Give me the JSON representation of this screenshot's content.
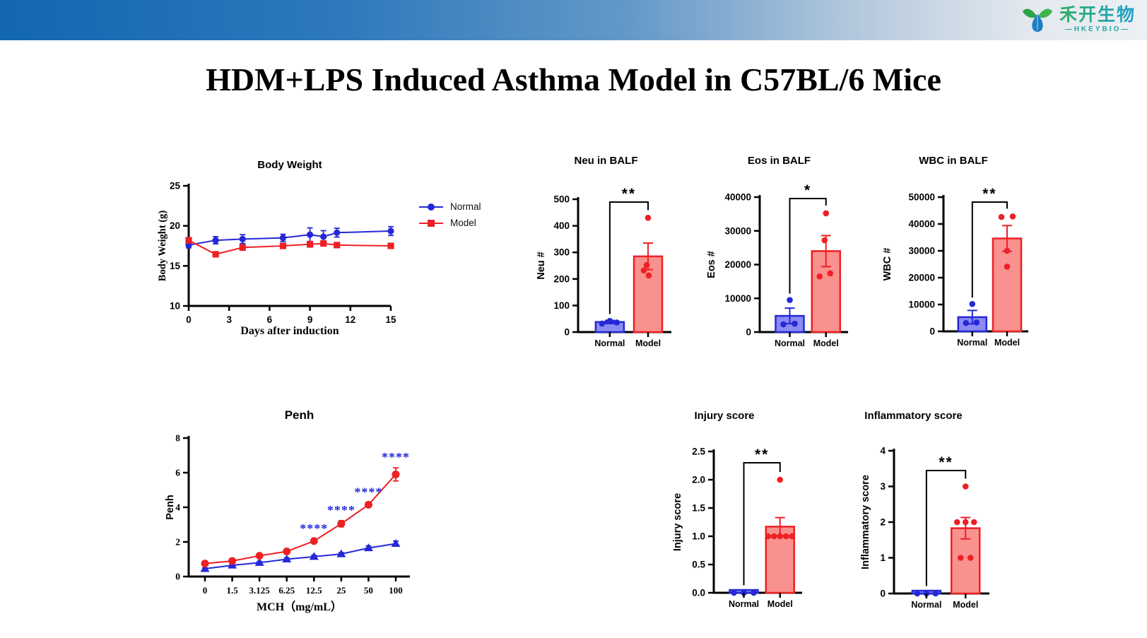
{
  "slide_title": "HDM+LPS Induced Asthma Model in C57BL/6 Mice",
  "logo": {
    "name_cn": "禾开生物",
    "name_en": "HKEYBIO"
  },
  "legend": {
    "items": [
      {
        "label": "Normal",
        "marker": "circle",
        "color": "#2428d6"
      },
      {
        "label": "Model",
        "marker": "square",
        "color": "#ee2025"
      }
    ]
  },
  "colors": {
    "normal_line": "#2428d6",
    "model_line": "#ee2025",
    "normal_fill": "#8a8af2",
    "model_fill": "#f9918e",
    "axis": "#000000",
    "annotation": "#2428d6"
  },
  "chart_data": [
    {
      "id": "body-weight",
      "type": "line",
      "title": "Body Weight",
      "xlabel": "Days after induction",
      "ylabel": "Body Weight (g)",
      "x": [
        0,
        2,
        4,
        7,
        9,
        10,
        11,
        15
      ],
      "xlim": [
        0,
        15
      ],
      "xticks": [
        0,
        3,
        6,
        9,
        12,
        15
      ],
      "ylim": [
        10,
        25
      ],
      "yticks": [
        10,
        15,
        20,
        25
      ],
      "ytick_labels": [
        "10",
        "15",
        "20",
        "25"
      ],
      "series": [
        {
          "name": "Normal",
          "color": "#2428d6",
          "marker": "circle",
          "values": [
            17.6,
            18.2,
            18.35,
            18.5,
            18.9,
            18.65,
            19.15,
            19.35
          ],
          "err": [
            0.35,
            0.45,
            0.55,
            0.45,
            0.85,
            0.75,
            0.55,
            0.55
          ]
        },
        {
          "name": "Model",
          "color": "#ee2025",
          "marker": "square",
          "values": [
            18.2,
            16.45,
            17.3,
            17.5,
            17.7,
            17.8,
            17.6,
            17.5
          ],
          "err": [
            0.25,
            0.15,
            0.35,
            0.2,
            0.35,
            0.15,
            0.2,
            0.15
          ]
        }
      ]
    },
    {
      "id": "penh",
      "type": "line",
      "title": "Penh",
      "xlabel": "MCH（mg/mL）",
      "ylabel": "Penh",
      "xcats": [
        "0",
        "1.5",
        "3.125",
        "6.25",
        "12.5",
        "25",
        "50",
        "100"
      ],
      "ylim": [
        0,
        8
      ],
      "yticks": [
        0,
        2,
        4,
        6,
        8
      ],
      "ytick_labels": [
        "0",
        "2",
        "4",
        "6",
        "8"
      ],
      "series": [
        {
          "name": "Normal",
          "color": "#2428d6",
          "marker": "triangle",
          "values": [
            0.45,
            0.65,
            0.8,
            1.0,
            1.15,
            1.3,
            1.65,
            1.9
          ],
          "err": [
            0.05,
            0.05,
            0.07,
            0.08,
            0.08,
            0.08,
            0.12,
            0.15
          ]
        },
        {
          "name": "Model",
          "color": "#ee2025",
          "marker": "circle",
          "values": [
            0.75,
            0.9,
            1.2,
            1.45,
            2.05,
            3.05,
            4.15,
            5.9
          ],
          "err": [
            0.06,
            0.06,
            0.08,
            0.08,
            0.12,
            0.18,
            0.12,
            0.38
          ]
        }
      ],
      "annotations": [
        {
          "xi": 4,
          "text": "****"
        },
        {
          "xi": 5,
          "text": "****"
        },
        {
          "xi": 6,
          "text": "****"
        },
        {
          "xi": 7,
          "text": "****"
        }
      ],
      "annotation_color": "#2428d6"
    },
    {
      "id": "neu-balf",
      "type": "bar",
      "title": "Neu in BALF",
      "ylabel": "Neu #",
      "ylim": [
        0,
        500
      ],
      "yticks": [
        0,
        100,
        200,
        300,
        400,
        500
      ],
      "ytick_labels": [
        "0",
        "100",
        "200",
        "300",
        "400",
        "500"
      ],
      "sig": "**",
      "bars": [
        {
          "name": "Normal",
          "value": 38,
          "err": 6,
          "fill": "#8a8af2",
          "stroke": "#2428d6",
          "dots": [
            {
              "v": 32,
              "dx": -11
            },
            {
              "v": 42,
              "dx": 0
            },
            {
              "v": 36,
              "dx": 10
            }
          ]
        },
        {
          "name": "Model",
          "value": 285,
          "err": 50,
          "fill": "#f9918e",
          "stroke": "#ee2025",
          "dots": [
            {
              "v": 430,
              "dx": 0
            },
            {
              "v": 252,
              "dx": -2
            },
            {
              "v": 232,
              "dx": -6
            },
            {
              "v": 213,
              "dx": 1
            }
          ]
        }
      ]
    },
    {
      "id": "eos-balf",
      "type": "bar",
      "title": "Eos in BALF",
      "ylabel": "Eos #",
      "ylim": [
        0,
        40000
      ],
      "yticks": [
        0,
        10000,
        20000,
        30000,
        40000
      ],
      "ytick_labels": [
        "0",
        "10000",
        "20000",
        "30000",
        "40000"
      ],
      "sig": "*",
      "bars": [
        {
          "name": "Normal",
          "value": 4800,
          "err": 2300,
          "fill": "#8a8af2",
          "stroke": "#2428d6",
          "dots": [
            {
              "v": 9500,
              "dx": 0
            },
            {
              "v": 2300,
              "dx": -9
            },
            {
              "v": 2500,
              "dx": 7
            }
          ]
        },
        {
          "name": "Model",
          "value": 24000,
          "err": 4600,
          "fill": "#f9918e",
          "stroke": "#ee2025",
          "dots": [
            {
              "v": 35200,
              "dx": 0
            },
            {
              "v": 27200,
              "dx": -2
            },
            {
              "v": 16500,
              "dx": -9
            },
            {
              "v": 17400,
              "dx": 6
            }
          ]
        }
      ]
    },
    {
      "id": "wbc-balf",
      "type": "bar",
      "title": "WBC in BALF",
      "ylabel": "WBC #",
      "ylim": [
        0,
        50000
      ],
      "yticks": [
        0,
        10000,
        20000,
        30000,
        40000,
        50000
      ],
      "ytick_labels": [
        "0",
        "10000",
        "20000",
        "30000",
        "40000",
        "50000"
      ],
      "sig": "**",
      "bars": [
        {
          "name": "Normal",
          "value": 5300,
          "err": 2500,
          "fill": "#8a8af2",
          "stroke": "#2428d6",
          "dots": [
            {
              "v": 10200,
              "dx": 0
            },
            {
              "v": 3100,
              "dx": -9
            },
            {
              "v": 3300,
              "dx": 6
            }
          ]
        },
        {
          "name": "Model",
          "value": 34600,
          "err": 4800,
          "fill": "#f9918e",
          "stroke": "#ee2025",
          "dots": [
            {
              "v": 42600,
              "dx": -8
            },
            {
              "v": 42800,
              "dx": 8
            },
            {
              "v": 30000,
              "dx": 0
            },
            {
              "v": 24100,
              "dx": 0
            }
          ]
        }
      ]
    },
    {
      "id": "injury-score",
      "type": "bar",
      "title": "Injury score",
      "ylabel": "Injury score",
      "ylim": [
        0,
        2.5
      ],
      "yticks": [
        0,
        0.5,
        1,
        1.5,
        2,
        2.5
      ],
      "ytick_labels": [
        "0.0",
        "0.5",
        "1.0",
        "1.5",
        "2.0",
        "2.5"
      ],
      "sig": "**",
      "bars": [
        {
          "name": "Normal",
          "value": 0.02,
          "err": 0,
          "fill": "#8a8af2",
          "stroke": "#2428d6",
          "dots": [
            {
              "v": 0,
              "dx": -14
            },
            {
              "v": 0,
              "dx": 0
            },
            {
              "v": 0,
              "dx": 14
            }
          ]
        },
        {
          "name": "Model",
          "value": 1.17,
          "err": 0.16,
          "fill": "#f9918e",
          "stroke": "#ee2025",
          "dots": [
            {
              "v": 2.0,
              "dx": 0
            },
            {
              "v": 1.0,
              "dx": -17
            },
            {
              "v": 1.0,
              "dx": -8.5
            },
            {
              "v": 1.0,
              "dx": 0
            },
            {
              "v": 1.0,
              "dx": 8.5
            },
            {
              "v": 1.0,
              "dx": 17
            }
          ]
        }
      ]
    },
    {
      "id": "inflammatory-score",
      "type": "bar",
      "title": "Inflammatory score",
      "ylabel": "Inflammatory score",
      "ylim": [
        0,
        4
      ],
      "yticks": [
        0,
        1,
        2,
        3,
        4
      ],
      "ytick_labels": [
        "0",
        "1",
        "2",
        "3",
        "4"
      ],
      "sig": "**",
      "bars": [
        {
          "name": "Normal",
          "value": 0.03,
          "err": 0,
          "fill": "#8a8af2",
          "stroke": "#2428d6",
          "dots": [
            {
              "v": 0,
              "dx": -13
            },
            {
              "v": 0,
              "dx": 0
            },
            {
              "v": 0,
              "dx": 13
            }
          ]
        },
        {
          "name": "Model",
          "value": 1.83,
          "err": 0.3,
          "fill": "#f9918e",
          "stroke": "#ee2025",
          "dots": [
            {
              "v": 3,
              "dx": 0
            },
            {
              "v": 2,
              "dx": -12
            },
            {
              "v": 2,
              "dx": 0
            },
            {
              "v": 2,
              "dx": 12
            },
            {
              "v": 1,
              "dx": -7
            },
            {
              "v": 1,
              "dx": 7
            }
          ]
        }
      ]
    }
  ]
}
